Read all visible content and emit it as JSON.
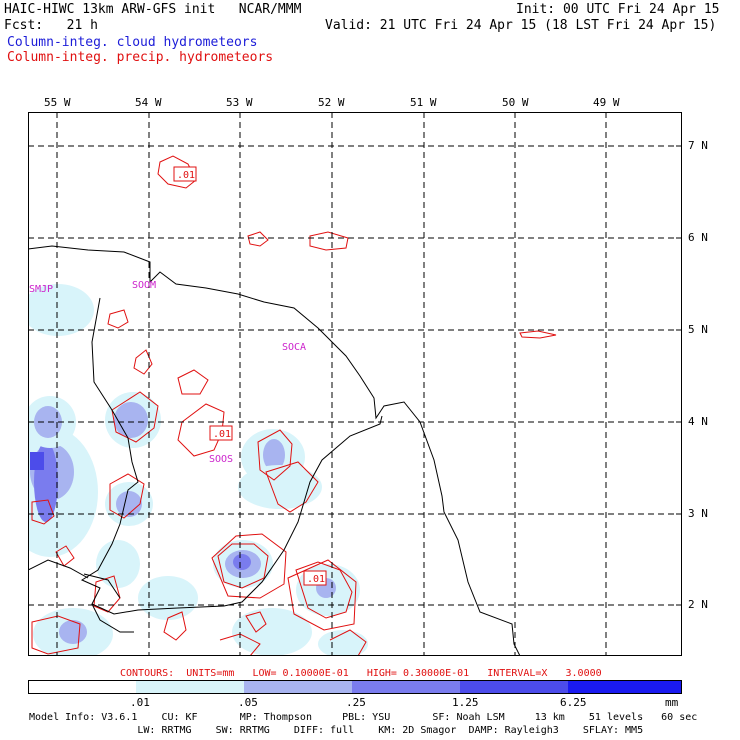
{
  "header": {
    "model_title": "HAIC-HIWC 13km ARW-GFS init   NCAR/MMM",
    "init": "Init: 00 UTC Fri 24 Apr 15",
    "fcst": "Fcst:   21 h",
    "valid": "Valid: 21 UTC Fri 24 Apr 15 (18 LST Fri 24 Apr 15)",
    "field_cloud": "Column-integ. cloud hydrometeors",
    "field_precip": "Column-integ. precip. hydrometeors"
  },
  "map": {
    "lon_labels": [
      "55 W",
      "54 W",
      "53 W",
      "52 W",
      "51 W",
      "50 W",
      "49 W"
    ],
    "lat_labels": [
      "7 N",
      "6 N",
      "5 N",
      "4 N",
      "3 N",
      "2 N"
    ],
    "stations": [
      "SMJP",
      "SOOM",
      "SOCA",
      "SOOS"
    ],
    "contour_labels": [
      ".01",
      ".01",
      ".01"
    ]
  },
  "contours_info": "CONTOURS:  UNITS=mm   LOW= 0.10000E-01   HIGH= 0.30000E-01   INTERVAL=X   3.0000",
  "colorbar": {
    "ticks": [
      ".01",
      ".05",
      ".25",
      "1.25",
      "6.25"
    ],
    "unit": "mm",
    "colors": [
      "#ffffff",
      "#d8f4fa",
      "#a8b4f0",
      "#7a7cee",
      "#4c4cea",
      "#1a1af0"
    ]
  },
  "model_info": {
    "line1": "Model Info: V3.6.1    CU: KF       MP: Thompson     PBL: YSU       SF: Noah LSM     13 km    51 levels   60 sec",
    "line2": "                  LW: RRTMG    SW: RRTMG    DIFF: full    KM: 2D Smagor  DAMP: Rayleigh3    SFLAY: MM5"
  }
}
